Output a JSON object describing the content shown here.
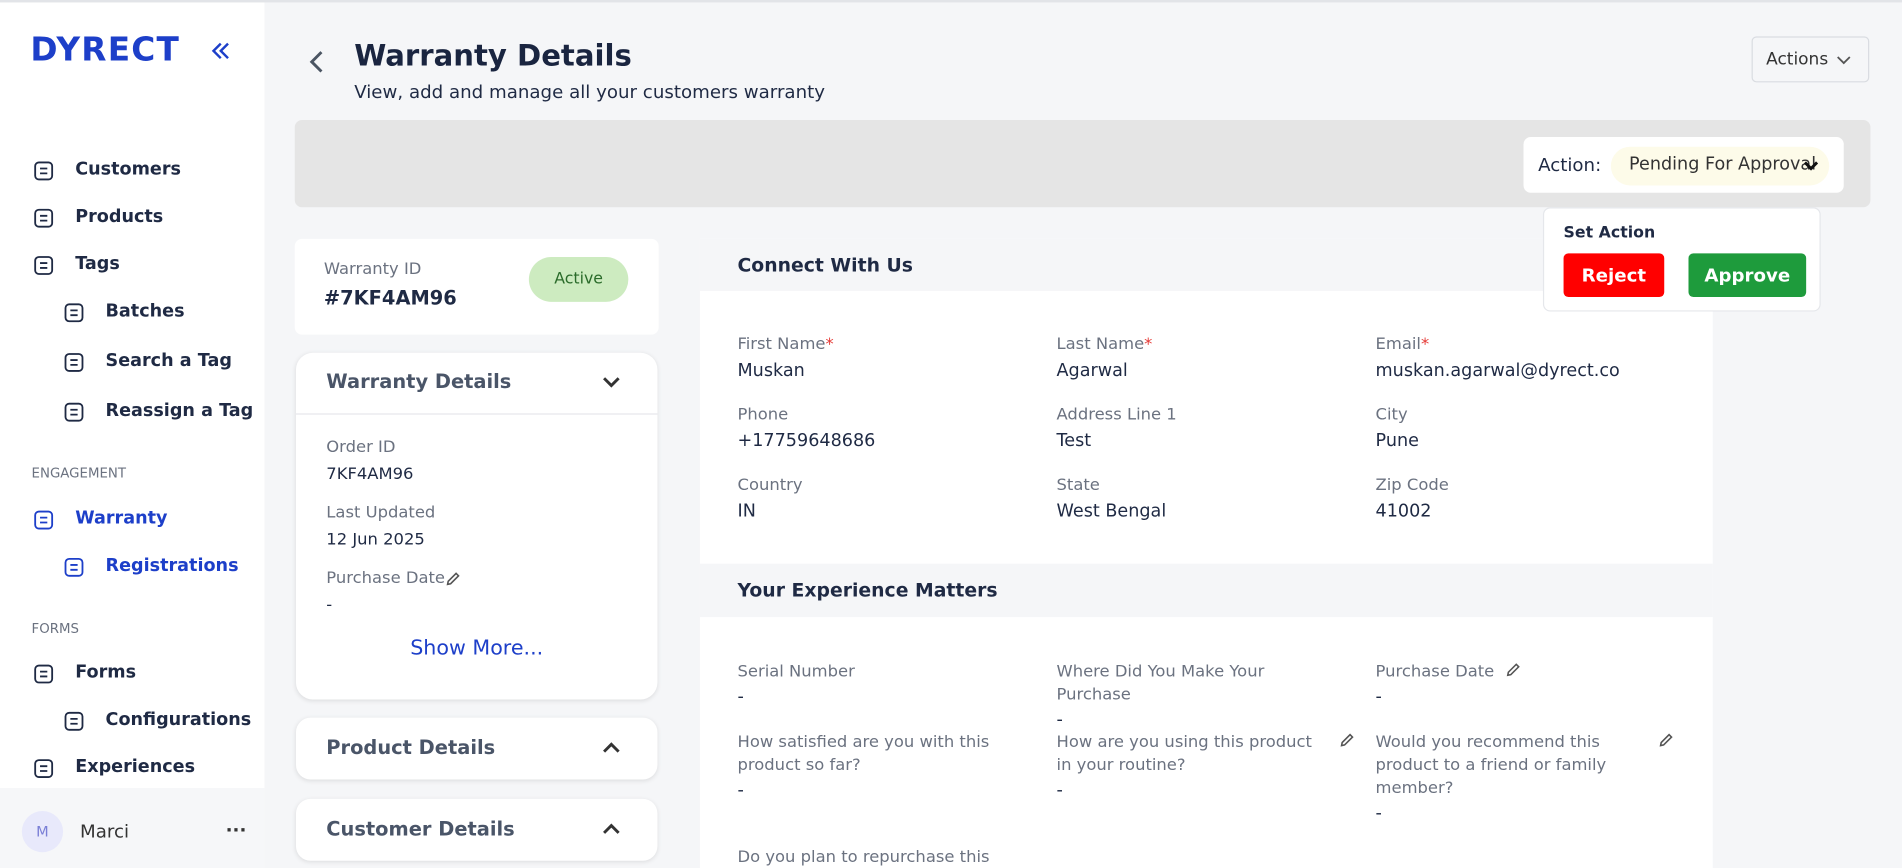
{
  "sidebar": {
    "logo": "DYRECT",
    "nav": [
      "Customers",
      "Products",
      "Tags",
      "Batches",
      "Search a Tag",
      "Reassign a Tag"
    ],
    "engagement_heading": "ENGAGEMENT",
    "engagement": [
      "Warranty",
      "Registrations"
    ],
    "forms_heading": "FORMS",
    "forms": [
      "Forms",
      "Configurations",
      "Experiences"
    ],
    "user": {
      "initial": "M",
      "name": "Marci",
      "menu": "..."
    }
  },
  "header": {
    "title": "Warranty Details",
    "subtitle": "View, add and manage all your customers warranty",
    "actions": "Actions"
  },
  "action_bar": {
    "label": "Action:",
    "value": "Pending For Approval"
  },
  "popover": {
    "title": "Set Action",
    "reject": "Reject",
    "approve": "Approve"
  },
  "warranty_card": {
    "id_label": "Warranty ID",
    "id": "#7KF4AM96",
    "status": "Active"
  },
  "warranty_details": {
    "title": "Warranty Details",
    "fields": [
      {
        "label": "Order ID",
        "value": "7KF4AM96"
      },
      {
        "label": "Last Updated",
        "value": "12 Jun 2025"
      },
      {
        "label": "Purchase Date",
        "value": "-"
      }
    ],
    "show_more": "Show More..."
  },
  "product_details": {
    "title": "Product Details"
  },
  "customer_details": {
    "title": "Customer Details"
  },
  "connect": {
    "title": "Connect With Us",
    "fields": [
      {
        "label": "First Name",
        "mark": "*",
        "value": "Muskan"
      },
      {
        "label": "Last Name",
        "mark": "*",
        "value": "Agarwal"
      },
      {
        "label": "Email",
        "mark": "*",
        "value": "muskan.agarwal@dyrect.co"
      },
      {
        "label": "Phone",
        "value": "+17759648686"
      },
      {
        "label": "Address Line 1",
        "value": "Test"
      },
      {
        "label": "City",
        "value": "Pune"
      },
      {
        "label": "Country",
        "value": "IN"
      },
      {
        "label": "State",
        "value": "West Bengal"
      },
      {
        "label": "Zip Code",
        "value": "41002"
      }
    ]
  },
  "experience": {
    "title": "Your Experience Matters",
    "fields": [
      {
        "label": "Serial Number",
        "value": "-"
      },
      {
        "label": "Where Did You Make Your Purchase",
        "value": "-"
      },
      {
        "label": "Purchase Date",
        "value": "-",
        "editable": true
      },
      {
        "label": "How satisfied are you with this product so far?",
        "value": "-"
      },
      {
        "label": "How are you using this product in your routine?",
        "value": "-",
        "editable": true
      },
      {
        "label": "Would you recommend this product to a friend or family member?",
        "value": "-",
        "editable": true
      },
      {
        "label": "Do you plan to repurchase this"
      }
    ]
  }
}
